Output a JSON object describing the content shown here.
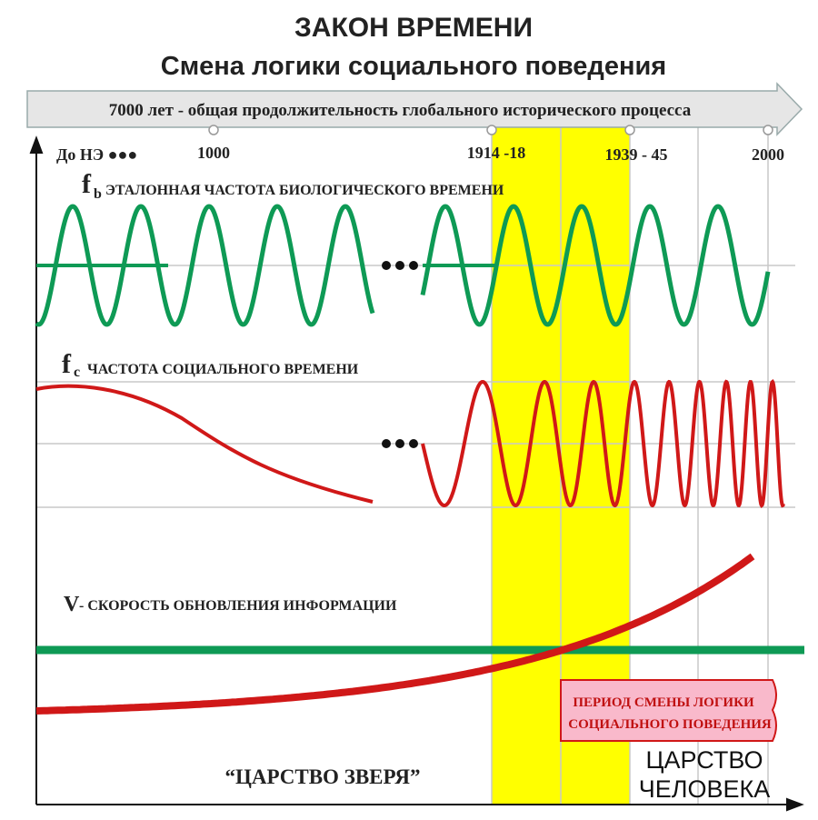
{
  "header": {
    "title": "ЗАКОН ВРЕМЕНИ",
    "subtitle": "Смена логики социального поведения"
  },
  "timeline": {
    "caption": "7000 лет - общая продолжительность глобального исторического процесса",
    "marks": [
      "До НЭ ●●●",
      "1000",
      "1914 -18",
      "1939 - 45",
      "2000"
    ]
  },
  "curves": [
    {
      "symbol": "f",
      "subscript": "b",
      "label": "ЭТАЛОННАЯ ЧАСТОТА БИОЛОГИЧЕСКОГО ВРЕМЕНИ"
    },
    {
      "symbol": "f",
      "subscript": "c",
      "label": "ЧАСТОТА СОЦИАЛЬНОГО ВРЕМЕНИ"
    },
    {
      "symbol": "V",
      "label": "- СКОРОСТЬ ОБНОВЛЕНИЯ ИНФОРМАЦИИ"
    }
  ],
  "period_box": [
    "ПЕРИОД СМЕНЫ ЛОГИКИ",
    "СОЦИАЛЬНОГО ПОВЕДЕНИЯ"
  ],
  "regions": {
    "beast": "“ЦАРСТВО ЗВЕРЯ”",
    "human": [
      "ЦАРСТВО",
      "ЧЕЛОВЕКА"
    ]
  }
}
